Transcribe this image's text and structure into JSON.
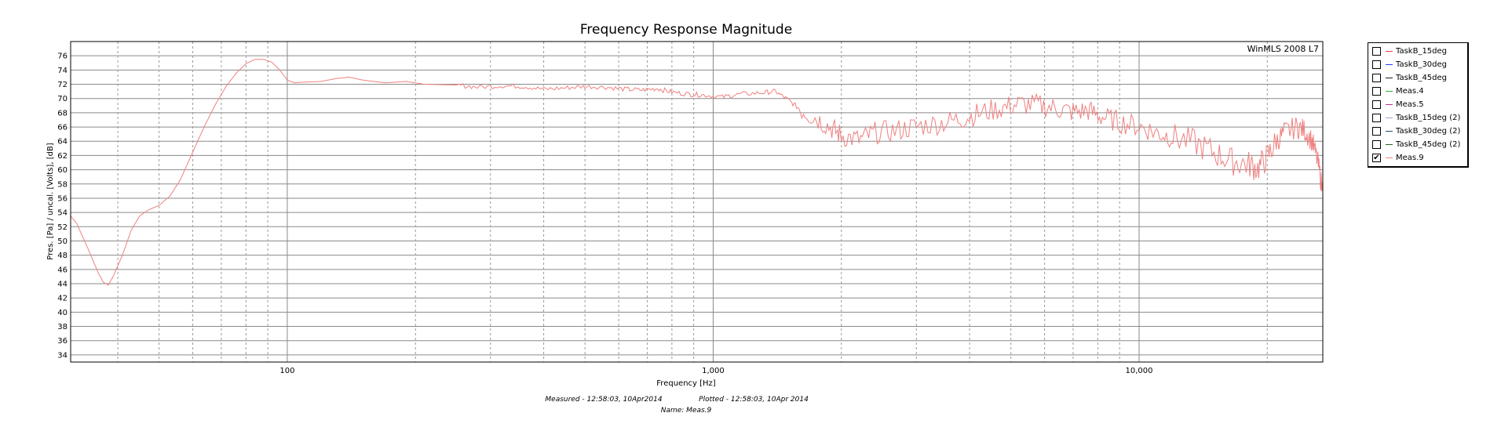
{
  "chart_data": {
    "type": "line",
    "title": "Frequency Response Magnitude",
    "watermark": "WinMLS 2008 L7",
    "xlabel": "Frequency [Hz]",
    "ylabel": "Pres. [Pa] / uncal. [Volts], [dB]",
    "xscale": "log",
    "xlim": [
      31,
      27000
    ],
    "ylim": [
      33,
      78
    ],
    "x_ticks": [
      {
        "value": 100,
        "label": "100"
      },
      {
        "value": 1000,
        "label": "1,000"
      },
      {
        "value": 10000,
        "label": "10,000"
      }
    ],
    "y_ticks": [
      34,
      36,
      38,
      40,
      42,
      44,
      46,
      48,
      50,
      52,
      54,
      56,
      58,
      60,
      62,
      64,
      66,
      68,
      70,
      72,
      74,
      76
    ],
    "grid": true,
    "legend_position": "right",
    "series": [
      {
        "name": "TaskB_15deg",
        "color": "#ff3b3b",
        "checked": false,
        "points": []
      },
      {
        "name": "TaskB_30deg",
        "color": "#2040ff",
        "checked": false,
        "points": []
      },
      {
        "name": "TaskB_45deg",
        "color": "#202020",
        "checked": false,
        "points": []
      },
      {
        "name": "Meas.4",
        "color": "#30b030",
        "checked": false,
        "points": []
      },
      {
        "name": "Meas.5",
        "color": "#c03080",
        "checked": false,
        "points": []
      },
      {
        "name": "TaskB_15deg (2)",
        "color": "#a0a0d0",
        "checked": false,
        "points": []
      },
      {
        "name": "TaskB_30deg (2)",
        "color": "#205070",
        "checked": false,
        "points": []
      },
      {
        "name": "TaskB_45deg (2)",
        "color": "#206020",
        "checked": false,
        "points": []
      },
      {
        "name": "Meas.9",
        "color": "#f08080",
        "checked": true,
        "points": [
          [
            31,
            53.5
          ],
          [
            32,
            52.5
          ],
          [
            34,
            49
          ],
          [
            36,
            45.5
          ],
          [
            37,
            44.2
          ],
          [
            38,
            43.8
          ],
          [
            39,
            45
          ],
          [
            41,
            48
          ],
          [
            43,
            51.5
          ],
          [
            45,
            53.5
          ],
          [
            47,
            54.3
          ],
          [
            50,
            55
          ],
          [
            53,
            56.3
          ],
          [
            56,
            58.5
          ],
          [
            60,
            62.5
          ],
          [
            64,
            66.2
          ],
          [
            68,
            69.3
          ],
          [
            72,
            71.8
          ],
          [
            76,
            73.6
          ],
          [
            80,
            74.9
          ],
          [
            84,
            75.5
          ],
          [
            88,
            75.5
          ],
          [
            92,
            75.1
          ],
          [
            96,
            74
          ],
          [
            100,
            72.6
          ],
          [
            104,
            72.2
          ],
          [
            110,
            72.3
          ],
          [
            120,
            72.4
          ],
          [
            130,
            72.8
          ],
          [
            140,
            73
          ],
          [
            150,
            72.6
          ],
          [
            170,
            72.2
          ],
          [
            190,
            72.4
          ],
          [
            210,
            72
          ],
          [
            250,
            71.9
          ],
          [
            280,
            71.6
          ],
          [
            320,
            71.8
          ],
          [
            360,
            71.7
          ],
          [
            400,
            71.3
          ],
          [
            450,
            71.5
          ],
          [
            500,
            71.7
          ],
          [
            560,
            71.6
          ],
          [
            620,
            71.3
          ],
          [
            680,
            71.2
          ],
          [
            740,
            71.4
          ],
          [
            800,
            70.9
          ],
          [
            880,
            70.6
          ],
          [
            950,
            70.5
          ],
          [
            1050,
            70.2
          ],
          [
            1150,
            70.6
          ],
          [
            1300,
            70.8
          ],
          [
            1400,
            71
          ],
          [
            1500,
            69.8
          ],
          [
            1600,
            68.5
          ],
          [
            1750,
            67.2
          ],
          [
            1900,
            65.8
          ],
          [
            2000,
            64.8
          ],
          [
            2200,
            64.2
          ],
          [
            2400,
            65.2
          ],
          [
            2700,
            65.5
          ],
          [
            3000,
            66.1
          ],
          [
            3400,
            66.5
          ],
          [
            3800,
            67.1
          ],
          [
            4200,
            67.9
          ],
          [
            4700,
            68.6
          ],
          [
            5200,
            69.2
          ],
          [
            5800,
            69.1
          ],
          [
            6400,
            68.6
          ],
          [
            7000,
            68.1
          ],
          [
            7600,
            68.3
          ],
          [
            8200,
            67.4
          ],
          [
            9000,
            66.7
          ],
          [
            10000,
            66.1
          ],
          [
            11000,
            65.2
          ],
          [
            12000,
            64.6
          ],
          [
            13500,
            63.8
          ],
          [
            15000,
            62.4
          ],
          [
            16500,
            61.2
          ],
          [
            18000,
            60.8
          ],
          [
            19000,
            60.2
          ],
          [
            20000,
            61.8
          ],
          [
            21000,
            64
          ],
          [
            22000,
            65.3
          ],
          [
            23500,
            66
          ],
          [
            24500,
            65.5
          ],
          [
            25500,
            64
          ],
          [
            26300,
            61
          ],
          [
            27000,
            57
          ]
        ]
      }
    ]
  },
  "footer": {
    "measured": "Measured - 12:58:03, 10Apr2014",
    "plotted": "Plotted - 12:58:03, 10Apr 2014",
    "name": "Name: Meas.9"
  }
}
